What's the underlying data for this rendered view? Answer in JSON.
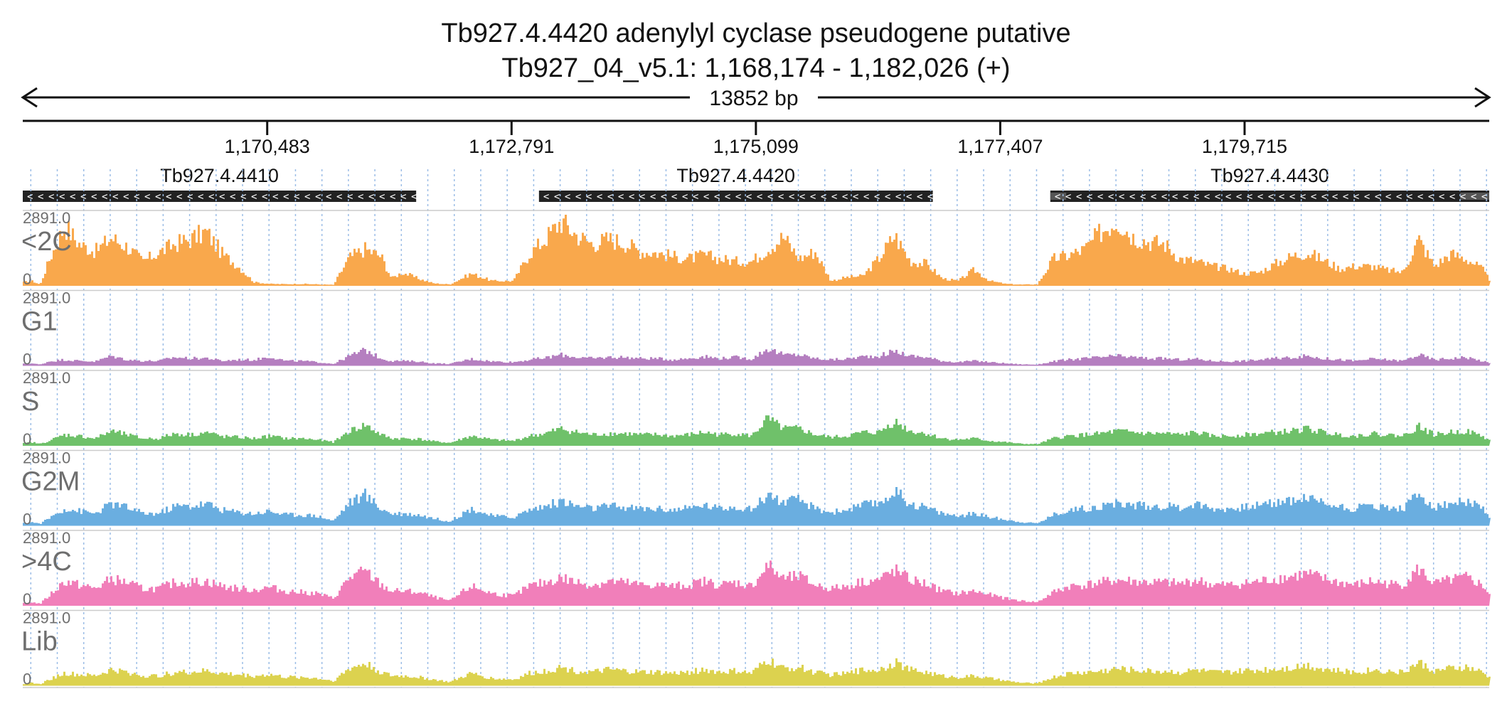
{
  "title": {
    "line1": "Tb927.4.4420  adenylyl cyclase  pseudogene  putative",
    "line2": "Tb927_04_v5.1: 1,168,174 - 1,182,026 (+)"
  },
  "span_label": "13852 bp",
  "chart_data": {
    "type": "area",
    "region": {
      "start": 1168174,
      "end": 1182026
    },
    "x_ticks": [
      {
        "value": 1170483,
        "label": "1,170,483"
      },
      {
        "value": 1172791,
        "label": "1,172,791"
      },
      {
        "value": 1175099,
        "label": "1,175,099"
      },
      {
        "value": 1177407,
        "label": "1,177,407"
      },
      {
        "value": 1179715,
        "label": "1,179,715"
      }
    ],
    "genes": [
      {
        "id": "Tb927.4.4410",
        "start": 1168174,
        "end": 1171890,
        "strand": "-",
        "utr": []
      },
      {
        "id": "Tb927.4.4420",
        "start": 1173050,
        "end": 1176770,
        "strand": "-",
        "utr": []
      },
      {
        "id": "Tb927.4.4430",
        "start": 1177880,
        "end": 1182026,
        "strand": "-",
        "utr": [
          [
            1177880,
            1178030
          ],
          [
            1181750,
            1182026
          ]
        ]
      }
    ],
    "ymax_label": "2891.0",
    "ymin_label": "0",
    "ylim": [
      0,
      2891
    ],
    "grid_step_bp": 250,
    "tracks": [
      {
        "name": "<2C",
        "color": "#f9a84c"
      },
      {
        "name": "G1",
        "color": "#b57fc0"
      },
      {
        "name": "S",
        "color": "#6fc16a"
      },
      {
        "name": "G2M",
        "color": "#6aaee0"
      },
      {
        "name": ">4C",
        "color": "#f17fba"
      },
      {
        "name": "Lib",
        "color": "#dcd24f"
      }
    ],
    "profile_x": [
      1168174,
      1168250,
      1168330,
      1168410,
      1168560,
      1168700,
      1168850,
      1169000,
      1169150,
      1169300,
      1169450,
      1169600,
      1169750,
      1169900,
      1170050,
      1170200,
      1170350,
      1170500,
      1170650,
      1170800,
      1170950,
      1171100,
      1171250,
      1171400,
      1171550,
      1171650,
      1171750,
      1171900,
      1172050,
      1172200,
      1172400,
      1172600,
      1172800,
      1172950,
      1173100,
      1173250,
      1173400,
      1173550,
      1173700,
      1173850,
      1174000,
      1174150,
      1174300,
      1174450,
      1174600,
      1174750,
      1174900,
      1175050,
      1175200,
      1175350,
      1175500,
      1175650,
      1175800,
      1175950,
      1176100,
      1176250,
      1176400,
      1176550,
      1176700,
      1176850,
      1177000,
      1177150,
      1177300,
      1177450,
      1177600,
      1177750,
      1177900,
      1178050,
      1178200,
      1178350,
      1178500,
      1178650,
      1178800,
      1178950,
      1179100,
      1179250,
      1179400,
      1179550,
      1179700,
      1179850,
      1180000,
      1180150,
      1180300,
      1180450,
      1180600,
      1180750,
      1180900,
      1181050,
      1181200,
      1181350,
      1181500,
      1181650,
      1181800,
      1181950,
      1182026
    ],
    "series": [
      {
        "name": "<2C",
        "values": [
          150,
          200,
          50,
          1000,
          2450,
          1700,
          1400,
          1950,
          1600,
          1000,
          1350,
          1700,
          1900,
          2200,
          1300,
          800,
          150,
          80,
          70,
          80,
          60,
          40,
          1150,
          1500,
          1200,
          300,
          550,
          300,
          100,
          60,
          500,
          200,
          200,
          1300,
          1900,
          2650,
          2050,
          1700,
          1900,
          1750,
          1400,
          1350,
          1200,
          1100,
          1250,
          1100,
          1000,
          1000,
          1500,
          2000,
          1100,
          1400,
          200,
          350,
          400,
          1100,
          2050,
          1000,
          900,
          300,
          200,
          650,
          200,
          80,
          50,
          60,
          1100,
          1250,
          1500,
          2200,
          2700,
          2000,
          1800,
          1700,
          1100,
          1000,
          800,
          700,
          500,
          550,
          900,
          1200,
          1350,
          1050,
          700,
          800,
          800,
          650,
          550,
          1900,
          800,
          1300,
          1100,
          700,
          200
        ]
      },
      {
        "name": "G1",
        "values": [
          80,
          100,
          50,
          180,
          250,
          200,
          180,
          400,
          250,
          200,
          200,
          350,
          300,
          320,
          200,
          250,
          240,
          380,
          200,
          200,
          150,
          80,
          400,
          650,
          300,
          200,
          200,
          180,
          100,
          80,
          280,
          180,
          150,
          250,
          320,
          450,
          350,
          300,
          350,
          350,
          300,
          300,
          250,
          300,
          380,
          300,
          350,
          280,
          700,
          450,
          450,
          300,
          250,
          280,
          380,
          400,
          600,
          400,
          350,
          200,
          150,
          200,
          150,
          100,
          60,
          50,
          180,
          250,
          300,
          350,
          400,
          350,
          300,
          300,
          250,
          280,
          200,
          180,
          200,
          250,
          300,
          350,
          400,
          300,
          250,
          200,
          280,
          250,
          200,
          450,
          250,
          300,
          350,
          200,
          100
        ]
      },
      {
        "name": "S",
        "values": [
          100,
          150,
          80,
          200,
          450,
          400,
          300,
          600,
          450,
          300,
          300,
          500,
          450,
          550,
          380,
          350,
          300,
          400,
          300,
          300,
          250,
          150,
          600,
          850,
          450,
          300,
          300,
          280,
          180,
          120,
          400,
          250,
          200,
          400,
          500,
          700,
          550,
          450,
          500,
          500,
          450,
          450,
          400,
          450,
          550,
          450,
          500,
          400,
          1100,
          700,
          700,
          450,
          350,
          400,
          550,
          550,
          1000,
          600,
          500,
          300,
          250,
          300,
          200,
          150,
          80,
          70,
          300,
          400,
          450,
          500,
          600,
          550,
          500,
          500,
          450,
          550,
          400,
          400,
          450,
          500,
          550,
          600,
          700,
          550,
          450,
          400,
          500,
          450,
          400,
          800,
          450,
          550,
          600,
          400,
          200
        ]
      },
      {
        "name": "G2M",
        "values": [
          100,
          150,
          80,
          300,
          700,
          600,
          500,
          900,
          750,
          500,
          500,
          800,
          800,
          900,
          650,
          550,
          500,
          600,
          450,
          450,
          400,
          200,
          950,
          1250,
          700,
          500,
          500,
          450,
          300,
          180,
          700,
          400,
          350,
          650,
          800,
          1000,
          800,
          700,
          800,
          750,
          700,
          700,
          650,
          700,
          850,
          700,
          800,
          650,
          1300,
          950,
          1050,
          700,
          550,
          650,
          850,
          900,
          1400,
          900,
          750,
          500,
          400,
          500,
          350,
          250,
          150,
          100,
          450,
          650,
          700,
          800,
          900,
          850,
          800,
          800,
          750,
          900,
          700,
          700,
          750,
          850,
          950,
          1050,
          1150,
          950,
          800,
          700,
          850,
          750,
          700,
          1300,
          750,
          900,
          1000,
          700,
          350
        ]
      },
      {
        "name": ">4C",
        "values": [
          100,
          150,
          80,
          400,
          1000,
          850,
          700,
          1100,
          950,
          700,
          700,
          950,
          950,
          1000,
          800,
          700,
          650,
          750,
          600,
          550,
          500,
          300,
          1150,
          1400,
          850,
          600,
          600,
          550,
          350,
          200,
          800,
          500,
          400,
          800,
          950,
          1150,
          950,
          850,
          1000,
          950,
          850,
          850,
          800,
          850,
          1000,
          850,
          950,
          800,
          1650,
          1100,
          1200,
          850,
          700,
          800,
          1000,
          1050,
          1450,
          1050,
          900,
          600,
          500,
          600,
          450,
          300,
          200,
          150,
          550,
          800,
          850,
          950,
          1050,
          1000,
          950,
          950,
          900,
          1050,
          850,
          850,
          900,
          1000,
          1100,
          1200,
          1300,
          1100,
          950,
          850,
          1000,
          900,
          850,
          1500,
          900,
          1050,
          1150,
          850,
          450
        ]
      },
      {
        "name": "Lib",
        "values": [
          80,
          120,
          60,
          250,
          500,
          450,
          400,
          650,
          550,
          400,
          400,
          550,
          550,
          600,
          500,
          450,
          400,
          450,
          350,
          350,
          300,
          200,
          700,
          900,
          550,
          400,
          400,
          350,
          250,
          150,
          500,
          300,
          250,
          500,
          600,
          750,
          600,
          550,
          650,
          600,
          550,
          550,
          500,
          550,
          650,
          550,
          600,
          500,
          1050,
          700,
          750,
          550,
          450,
          500,
          650,
          650,
          950,
          650,
          550,
          400,
          350,
          400,
          300,
          200,
          120,
          100,
          350,
          500,
          550,
          600,
          700,
          650,
          600,
          600,
          550,
          650,
          550,
          550,
          600,
          650,
          700,
          750,
          850,
          700,
          600,
          550,
          650,
          600,
          550,
          950,
          600,
          700,
          750,
          550,
          300
        ]
      }
    ]
  }
}
